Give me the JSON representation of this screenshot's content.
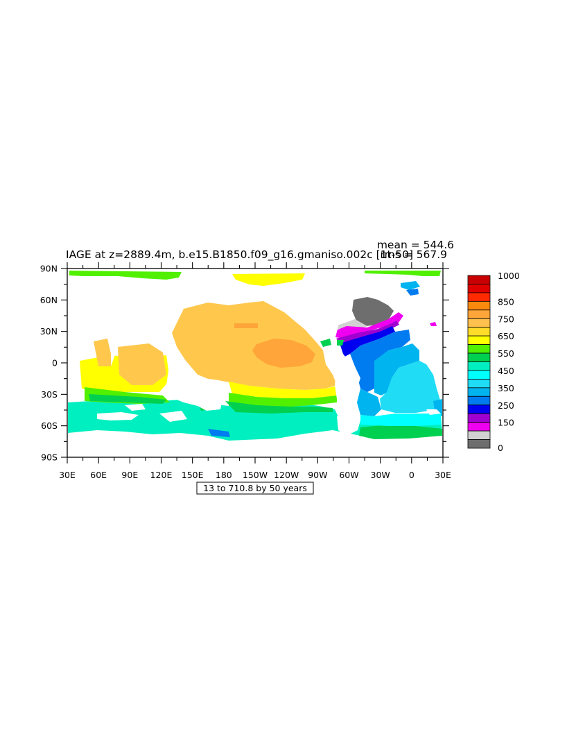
{
  "title": "IAGE at z=2889.4m, b.e15.B1850.f09_g16.gmaniso.002c [1t-50]",
  "mean_label": "mean = 544.6",
  "rms_label": "rms = 567.9",
  "contour_info": "13 to 710.8 by 50 years",
  "lat_labels": [
    "90N",
    "60N",
    "30N",
    "0",
    "30S",
    "60S",
    "90S"
  ],
  "lon_labels": [
    "30E",
    "60E",
    "90E",
    "120E",
    "150E",
    "180",
    "150W",
    "120W",
    "90W",
    "60W",
    "30W",
    "0",
    "30E"
  ],
  "colorbar": {
    "labels": [
      "1000",
      "850",
      "750",
      "650",
      "550",
      "450",
      "350",
      "250",
      "150",
      "0"
    ],
    "colors": [
      "#c80000",
      "#e00000",
      "#ff2a00",
      "#f98a0e",
      "#ffa53a",
      "#ffc14d",
      "#ffdc2a",
      "#ffff00",
      "#50f000",
      "#00d050",
      "#00efc0",
      "#00ffff",
      "#20dcf5",
      "#00b4f0",
      "#007bf0",
      "#0000f0",
      "#a000d0",
      "#f000f0",
      "#d2d2d2",
      "#6e6e6e"
    ]
  },
  "field_colors": {
    "age_700_750": "#ffc84d",
    "age_750_800": "#ffa53a",
    "age_650_700": "#ffff00",
    "age_600_650": "#50f000",
    "age_550_600": "#00d050",
    "age_500_550": "#00efc0",
    "age_450_500": "#00ffff",
    "age_400_450": "#20dcf5",
    "age_350_400": "#00b4f0",
    "age_300_350": "#007bf0",
    "age_250_300": "#0000f0",
    "age_200_250": "#a000d0",
    "age_150_200": "#f000f0",
    "age_100_150": "#d2d2d2",
    "age_0_100": "#6e6e6e"
  }
}
